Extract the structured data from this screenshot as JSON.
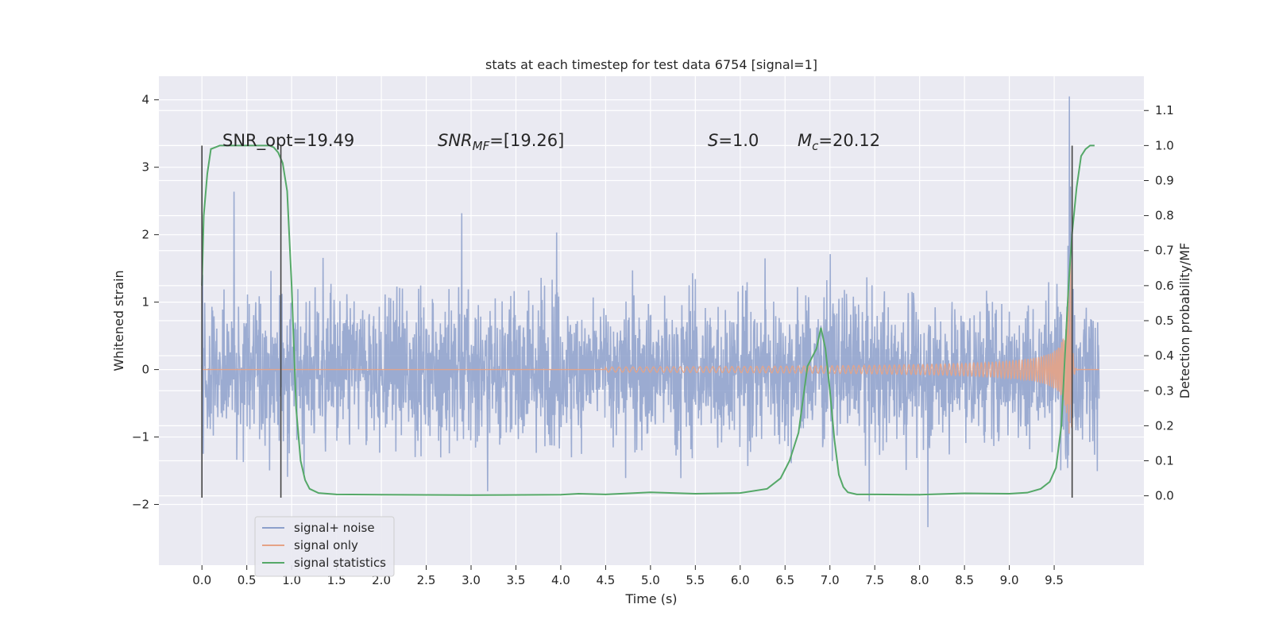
{
  "colors": {
    "background": "#eaeaf2",
    "grid": "#ffffff",
    "noise": "#8da0cb",
    "signal": "#e5a386",
    "stats": "#55a868",
    "marker": "#444444"
  },
  "chart_data": {
    "type": "line",
    "title": "stats at each timestep for test data 6754 [signal=1]",
    "xlabel": "Time (s)",
    "ylabel": "Whitened strain",
    "y2label": "Detection probability/MF",
    "xlim": [
      -0.48,
      10.5
    ],
    "ylim": [
      -2.9,
      4.35
    ],
    "y2lim": [
      -0.198,
      1.198
    ],
    "grid": true,
    "legend_position": "lower-left",
    "x_ticks": [
      0.0,
      0.5,
      1.0,
      1.5,
      2.0,
      2.5,
      3.0,
      3.5,
      4.0,
      4.5,
      5.0,
      5.5,
      6.0,
      6.5,
      7.0,
      7.5,
      8.0,
      8.5,
      9.0,
      9.5
    ],
    "x_tick_labels": [
      "0.0",
      "0.5",
      "1.0",
      "1.5",
      "2.0",
      "2.5",
      "3.0",
      "3.5",
      "4.0",
      "4.5",
      "5.0",
      "5.5",
      "6.0",
      "6.5",
      "7.0",
      "7.5",
      "8.0",
      "8.5",
      "9.0",
      "9.5"
    ],
    "y_ticks": [
      4,
      3,
      2,
      1,
      0,
      -1,
      -2
    ],
    "y_tick_labels": [
      "4",
      "3",
      "2",
      "1",
      "0",
      "−1",
      "−2"
    ],
    "y2_ticks": [
      1.1,
      1.0,
      0.9,
      0.8,
      0.7,
      0.6,
      0.5,
      0.4,
      0.3,
      0.2,
      0.1,
      0.0
    ],
    "y2_tick_labels": [
      "1.1",
      "1.0",
      "0.9",
      "0.8",
      "0.7",
      "0.6",
      "0.5",
      "0.4",
      "0.3",
      "0.2",
      "0.1",
      "0.0"
    ],
    "annotations": {
      "snr_opt": "SNR_opt=19.49",
      "snr_mf_label": "SNR",
      "snr_mf_sub": "MF",
      "snr_mf_value": "=[19.26]",
      "s_label": "S",
      "s_value": "=1.0",
      "mc_label": "M",
      "mc_sub": "c",
      "mc_value": "=20.12"
    },
    "series": [
      {
        "name": "signal+ noise",
        "description_values": "whitened noise between about -2.2 and 2.75 over 0.0–10.0 s, peak 4.05 near 9.67 s",
        "x_range": [
          0.0,
          10.0
        ],
        "typical_amplitude": 0.75,
        "peak_x": 9.67,
        "peak_y": 4.05
      },
      {
        "name": "signal only",
        "chirp_start": 4.5,
        "chirp_merger": 9.68,
        "end_x": 10.0,
        "final_amplitude": 2.8
      },
      {
        "name": "signal statistics",
        "x": [
          0.0,
          0.02,
          0.06,
          0.1,
          0.15,
          0.2,
          0.25,
          0.3,
          0.4,
          0.5,
          0.6,
          0.7,
          0.75,
          0.8,
          0.85,
          0.9,
          0.95,
          1.0,
          1.05,
          1.1,
          1.15,
          1.2,
          1.3,
          1.5,
          2.0,
          3.0,
          4.0,
          4.2,
          4.5,
          5.0,
          5.5,
          6.0,
          6.3,
          6.45,
          6.55,
          6.65,
          6.75,
          6.85,
          6.9,
          6.95,
          7.0,
          7.05,
          7.1,
          7.15,
          7.2,
          7.3,
          7.5,
          8.0,
          8.5,
          9.0,
          9.2,
          9.35,
          9.45,
          9.52,
          9.58,
          9.62,
          9.66,
          9.7,
          9.75,
          9.8,
          9.85,
          9.9,
          9.95
        ],
        "y": [
          0.6,
          0.8,
          0.92,
          0.99,
          0.995,
          1.0,
          1.0,
          1.0,
          1.0,
          1.0,
          1.0,
          1.0,
          1.0,
          0.995,
          0.98,
          0.95,
          0.87,
          0.6,
          0.25,
          0.1,
          0.045,
          0.02,
          0.008,
          0.004,
          0.003,
          0.002,
          0.003,
          0.006,
          0.004,
          0.01,
          0.006,
          0.008,
          0.02,
          0.05,
          0.1,
          0.18,
          0.37,
          0.42,
          0.48,
          0.42,
          0.3,
          0.16,
          0.06,
          0.025,
          0.01,
          0.004,
          0.004,
          0.003,
          0.007,
          0.006,
          0.009,
          0.02,
          0.04,
          0.08,
          0.2,
          0.4,
          0.6,
          0.75,
          0.88,
          0.97,
          0.99,
          1.0,
          1.0
        ]
      }
    ],
    "vertical_markers": [
      {
        "x": 0.0,
        "y_bottom": -1.9,
        "y_top": 3.32
      },
      {
        "x": 0.88,
        "y_bottom": -1.9,
        "y_top": 3.32
      },
      {
        "x": 9.7,
        "y_bottom": -1.9,
        "y_top": 3.32
      }
    ],
    "legend": [
      "signal+ noise",
      "signal only",
      "signal statistics"
    ]
  }
}
